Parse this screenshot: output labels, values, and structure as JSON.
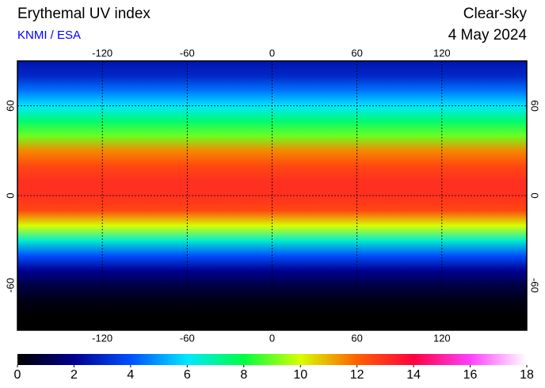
{
  "header": {
    "title": "Erythemal UV index",
    "source": "KNMI / ESA",
    "condition": "Clear-sky",
    "date": "4 May 2024"
  },
  "map": {
    "xlim": [
      -180,
      180
    ],
    "ylim": [
      -90,
      90
    ],
    "xticks": [
      -120,
      -60,
      0,
      60,
      120
    ],
    "yticks": [
      60,
      0,
      -60
    ],
    "grid": true,
    "zonal_uv": {
      "lat": [
        90,
        80,
        70,
        60,
        50,
        40,
        30,
        20,
        10,
        0,
        -10,
        -20,
        -30,
        -40,
        -50,
        -60,
        -70,
        -80,
        -90
      ],
      "values": [
        2.5,
        3,
        4.5,
        6,
        7.5,
        9,
        11.5,
        12.5,
        13,
        13,
        12.5,
        10,
        6.5,
        4,
        2,
        1,
        0.3,
        0,
        0
      ]
    }
  },
  "colorbar": {
    "lim": [
      0,
      18
    ],
    "ticks": [
      0,
      2,
      4,
      6,
      8,
      10,
      12,
      14,
      16,
      18
    ],
    "colors": [
      "#000000",
      "#000090",
      "#0050ff",
      "#00e8ff",
      "#00ff40",
      "#d8ff00",
      "#ff6000",
      "#ff0040",
      "#ff40ff",
      "#ffffff"
    ]
  }
}
